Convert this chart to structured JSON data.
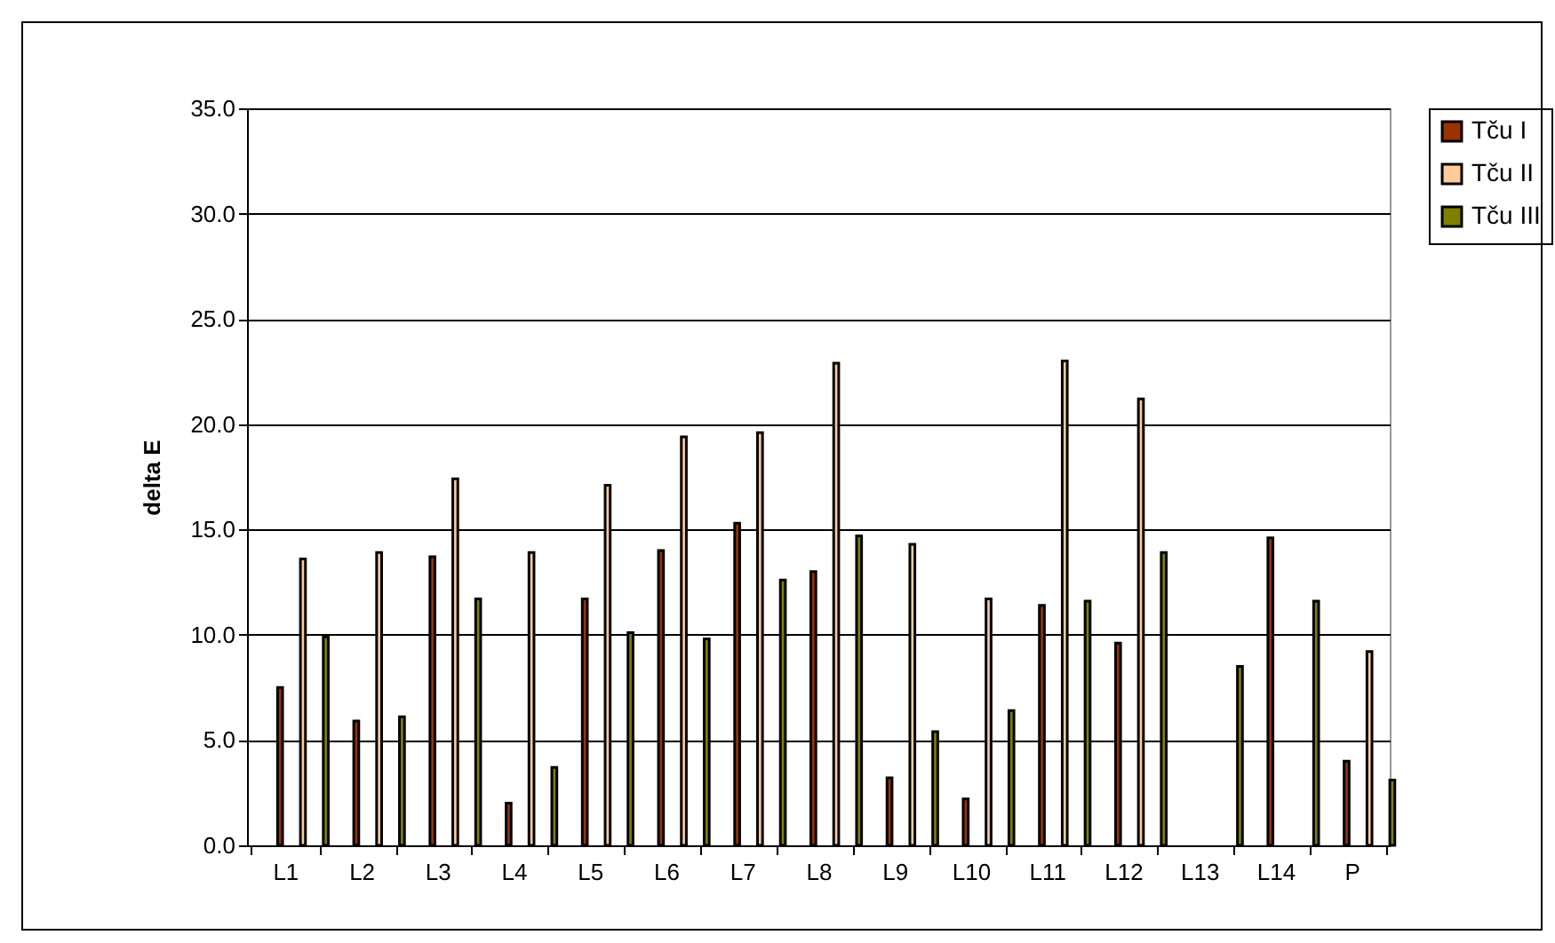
{
  "chart_data": {
    "type": "bar",
    "ylabel": "delta E",
    "categories": [
      "L1",
      "L2",
      "L3",
      "L4",
      "L5",
      "L6",
      "L7",
      "L8",
      "L9",
      "L10",
      "L11",
      "L12",
      "L13",
      "L14",
      "P"
    ],
    "series": [
      {
        "name": "Tču I",
        "color": "#993300",
        "values": [
          7.5,
          5.9,
          13.7,
          2.0,
          11.7,
          14.0,
          15.3,
          13.0,
          3.2,
          2.2,
          11.4,
          9.6,
          null,
          14.6,
          4.0
        ]
      },
      {
        "name": "Tču II",
        "color": "#ffcc99",
        "values": [
          13.6,
          13.9,
          17.4,
          13.9,
          17.1,
          19.4,
          19.6,
          22.9,
          14.3,
          11.7,
          23.0,
          21.2,
          null,
          null,
          9.2
        ]
      },
      {
        "name": "Tču III",
        "color": "#808000",
        "values": [
          9.9,
          6.1,
          11.7,
          3.7,
          10.1,
          9.8,
          12.6,
          14.7,
          5.4,
          6.4,
          11.6,
          13.9,
          8.5,
          11.6,
          3.1
        ]
      }
    ],
    "ylim": [
      0,
      35
    ],
    "yticks": [
      {
        "value": 0,
        "label": "0.0"
      },
      {
        "value": 5,
        "label": "5.0"
      },
      {
        "value": 10,
        "label": "10.0"
      },
      {
        "value": 15,
        "label": "15.0"
      },
      {
        "value": 20,
        "label": "20.0"
      },
      {
        "value": 25,
        "label": "25.0"
      },
      {
        "value": 30,
        "label": "30.0"
      },
      {
        "value": 35,
        "label": "35.0"
      }
    ],
    "grid": "y",
    "legend": "right"
  }
}
